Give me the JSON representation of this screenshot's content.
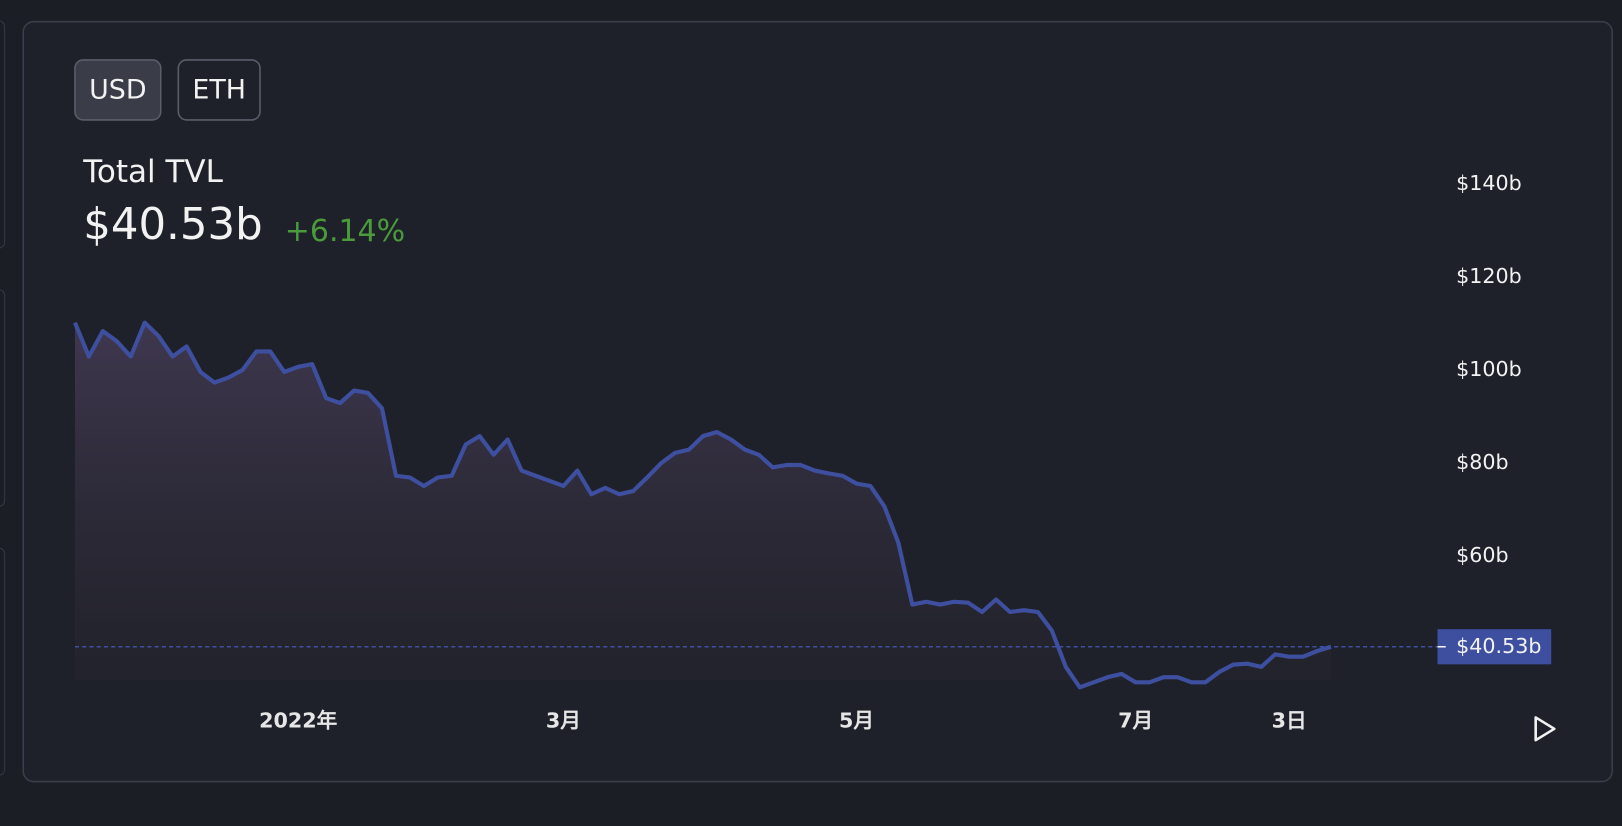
{
  "buttons": [
    "USD",
    "ETH"
  ],
  "header": {
    "title": "Total TVL",
    "value": "$40.53b",
    "change": "+6.14%"
  },
  "chart_data": {
    "type": "area",
    "categories": [
      null,
      null,
      null,
      null,
      null,
      null,
      null,
      null,
      null,
      null,
      null,
      null,
      null,
      null,
      null,
      null,
      "2022年",
      null,
      null,
      null,
      null,
      null,
      null,
      null,
      null,
      null,
      null,
      null,
      null,
      null,
      null,
      null,
      null,
      null,
      null,
      "3月",
      null,
      null,
      null,
      null,
      null,
      null,
      null,
      null,
      null,
      null,
      null,
      null,
      null,
      null,
      null,
      null,
      null,
      null,
      null,
      null,
      "5月",
      null,
      null,
      null,
      null,
      null,
      null,
      null,
      null,
      null,
      null,
      null,
      null,
      null,
      null,
      null,
      null,
      null,
      null,
      null,
      "7月",
      null,
      null,
      null,
      null,
      null,
      null,
      null,
      null,
      null,
      null,
      "3日",
      null,
      null,
      null
    ],
    "values": [
      110.2,
      102.9,
      108.4,
      106.2,
      102.9,
      110.2,
      107.3,
      102.9,
      105.1,
      99.6,
      97.3,
      98.4,
      100,
      104,
      104,
      99.6,
      100.7,
      101.3,
      94,
      92.9,
      95.6,
      95.1,
      91.8,
      77.3,
      76.9,
      75.1,
      76.9,
      77.3,
      84,
      85.8,
      81.8,
      85.1,
      78.4,
      77.3,
      76.2,
      75.1,
      78.4,
      73.3,
      74.7,
      73.3,
      74,
      76.9,
      80,
      82.2,
      82.9,
      85.8,
      86.7,
      85.1,
      82.9,
      81.8,
      79.1,
      79.6,
      79.6,
      78.4,
      77.8,
      77.3,
      75.6,
      75.1,
      70.7,
      62.9,
      49.6,
      50.2,
      49.6,
      50.2,
      50,
      48,
      50.7,
      48,
      48.4,
      48,
      44,
      36.2,
      31.8,
      32.9,
      34,
      34.7,
      32.9,
      32.9,
      34,
      34,
      32.9,
      32.9,
      35.1,
      36.7,
      36.9,
      36.2,
      38.9,
      38.4,
      38.4,
      39.6,
      40.53
    ],
    "color": "#3f4fa0",
    "ylim": [
      30,
      146
    ],
    "yticks": [
      {
        "value": 60,
        "label": "$60b"
      },
      {
        "value": 80,
        "label": "$80b"
      },
      {
        "value": 100,
        "label": "$100b"
      },
      {
        "value": 120,
        "label": "$120b"
      },
      {
        "value": 140,
        "label": "$140b"
      }
    ]
  }
}
